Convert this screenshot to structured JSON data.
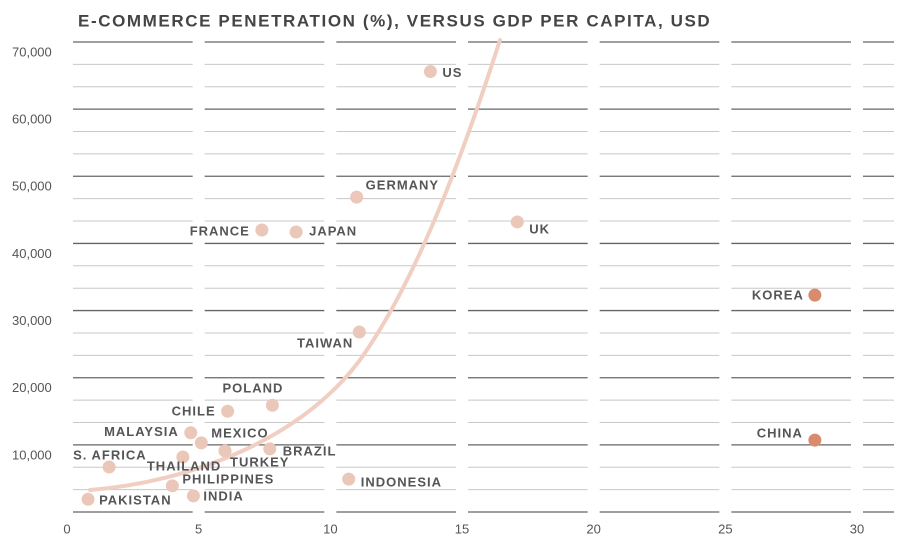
{
  "chart_data": {
    "type": "scatter",
    "title": "E-COMMERCE PENETRATION (%), VERSUS GDP PER CAPITA, USD",
    "series": [
      {
        "labels": [
          "US",
          "GERMANY",
          "UK",
          "FRANCE",
          "JAPAN",
          "KOREA",
          "TAIWAN",
          "POLAND",
          "CHILE",
          "MALAYSIA",
          "MEXICO",
          "CHINA",
          "BRAZIL",
          "TURKEY",
          "THAILAND",
          "S. AFRICA",
          "INDONESIA",
          "PHILIPPINES",
          "INDIA",
          "PAKISTAN"
        ],
        "x": [
          13.8,
          11.0,
          17.1,
          7.4,
          8.7,
          28.4,
          11.1,
          7.8,
          6.1,
          4.7,
          5.1,
          28.4,
          7.7,
          6.0,
          4.4,
          1.6,
          10.7,
          4.0,
          4.8,
          0.8
        ],
        "values": [
          65600,
          46900,
          43200,
          42000,
          41700,
          32300,
          26800,
          15900,
          15000,
          11800,
          10300,
          10700,
          9400,
          9100,
          8200,
          6700,
          4900,
          3900,
          2400,
          1900
        ],
        "colors": [
          "#ebc7b9",
          "#ebc7b9",
          "#ebc7b9",
          "#ebc7b9",
          "#ebc7b9",
          "#d98b6e",
          "#ebc7b9",
          "#ebc7b9",
          "#ebc7b9",
          "#ebc7b9",
          "#ebc7b9",
          "#d98b6e",
          "#ebc7b9",
          "#ebc7b9",
          "#ebc7b9",
          "#ebc7b9",
          "#ebc7b9",
          "#ebc7b9",
          "#ebc7b9",
          "#ebc7b9"
        ]
      }
    ],
    "xlim": [
      0,
      30
    ],
    "xticks": [
      0,
      5,
      10,
      15,
      20,
      25,
      30
    ],
    "ylim": [
      0,
      70000
    ],
    "yticks": [
      {
        "value": 10000,
        "label": "10,000"
      },
      {
        "value": 20000,
        "label": "20,000"
      },
      {
        "value": 30000,
        "label": "30,000"
      },
      {
        "value": 40000,
        "label": "40,000"
      },
      {
        "value": 50000,
        "label": "50,000"
      },
      {
        "value": 60000,
        "label": "60,000"
      },
      {
        "value": 70000,
        "label": "70,000"
      }
    ],
    "grid": true
  }
}
